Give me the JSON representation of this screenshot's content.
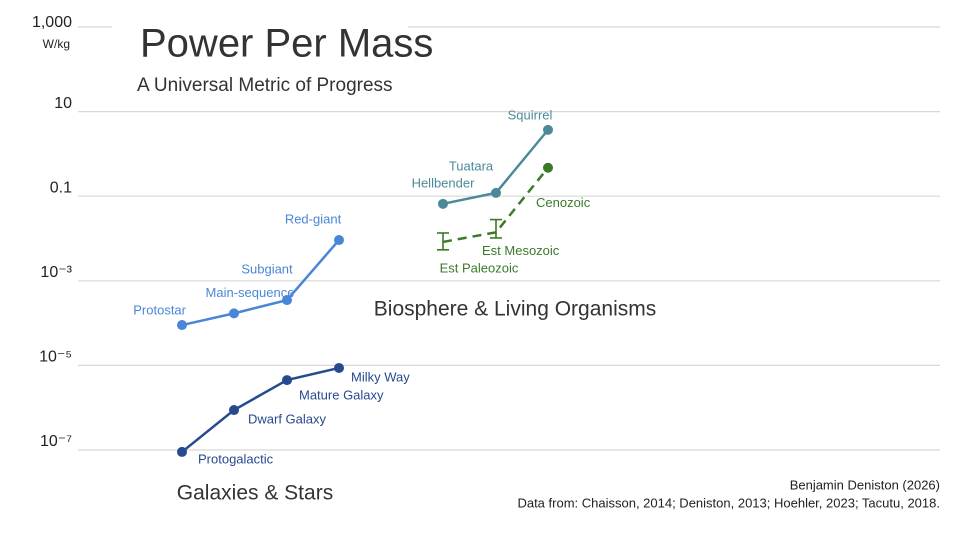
{
  "chart_data": {
    "type": "line",
    "title": "Power Per Mass",
    "subtitle": "A Universal Metric of Progress",
    "y_unit": "W/kg",
    "log_y": true,
    "grid": true,
    "ylim": [
      1e-07,
      1000
    ],
    "yticks": [
      {
        "value": 1e-07,
        "label": "10⁻⁷"
      },
      {
        "value": 1e-05,
        "label": "10⁻⁵"
      },
      {
        "value": 0.001,
        "label": "10⁻³"
      },
      0.1,
      10,
      {
        "value": 1000,
        "label": "1,000"
      }
    ],
    "series": [
      {
        "name": "Galaxies",
        "color": "#264a8e",
        "labels": [
          "Protogalactic",
          "Dwarf Galaxy",
          "Mature Galaxy",
          "Milky Way"
        ],
        "values": [
          9e-08,
          8.8e-07,
          4.5e-06,
          8.7e-06
        ]
      },
      {
        "name": "Stars",
        "color": "#4a86d8",
        "labels": [
          "Protostar",
          "Main-sequence",
          "Subgiant",
          "Red-giant"
        ],
        "values": [
          9e-05,
          0.00017,
          0.00035,
          0.0092
        ]
      },
      {
        "name": "Organisms",
        "color": "#4d8a99",
        "labels": [
          "Hellbender",
          "Tuatara",
          "Squirrel"
        ],
        "values": [
          0.066,
          0.12,
          3.7
        ]
      },
      {
        "name": "Biosphere",
        "color": "#3a7a28",
        "dashed": true,
        "labels": [
          "Est Paleozoic",
          "Est Mesozoic",
          "Cenozoic"
        ],
        "values": [
          0.0083,
          0.014,
          0.47
        ],
        "errors_low": [
          0.0054,
          0.0103,
          null
        ],
        "errors_high": [
          0.0135,
          0.028,
          null
        ]
      }
    ],
    "annotations": [
      "Galaxies & Stars",
      "Biosphere & Living Organisms"
    ],
    "credit": "Benjamin Deniston (2026)",
    "source": "Data from: Chaisson, 2014; Deniston, 2013; Hoehler, 2023; Tacutu, 2018."
  }
}
